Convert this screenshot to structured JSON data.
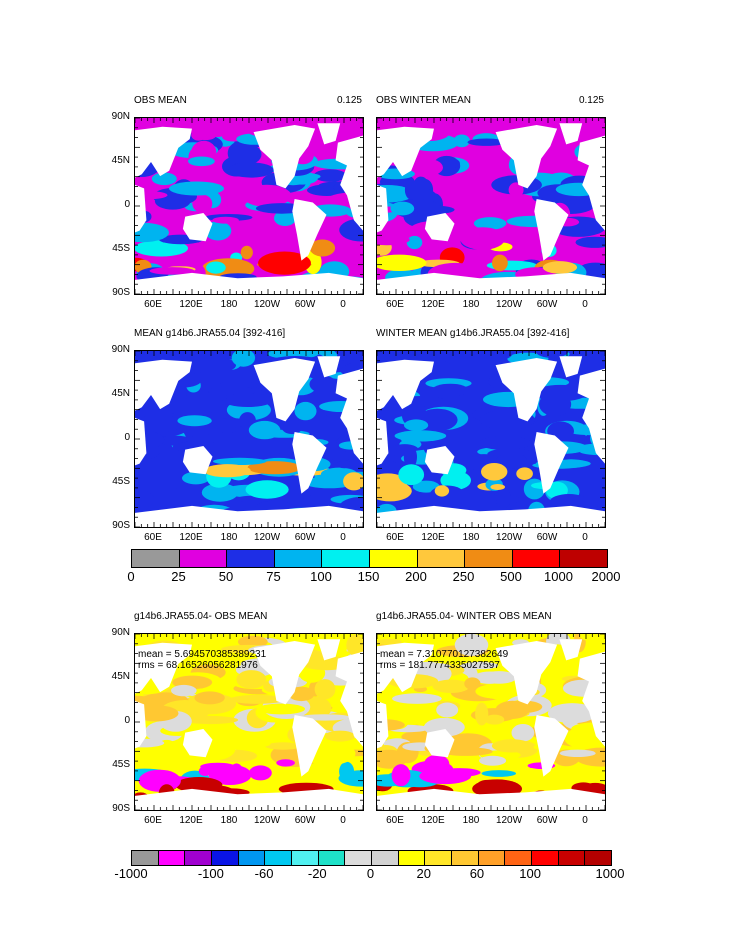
{
  "panels": [
    {
      "id": "p1",
      "title": "OBS MEAN",
      "right": "0.125",
      "stats": []
    },
    {
      "id": "p2",
      "title": "OBS WINTER MEAN",
      "right": "0.125",
      "stats": []
    },
    {
      "id": "p3",
      "title": "MEAN g14b6.JRA55.04 [392-416]",
      "right": "",
      "stats": []
    },
    {
      "id": "p4",
      "title": "WINTER MEAN g14b6.JRA55.04 [392-416]",
      "right": "",
      "stats": []
    },
    {
      "id": "p5",
      "title": "g14b6.JRA55.04- OBS MEAN",
      "right": "",
      "stats": [
        "mean = 5.694570385389231",
        "rms = 68.16526056281976"
      ]
    },
    {
      "id": "p6",
      "title": "g14b6.JRA55.04- WINTER OBS MEAN",
      "right": "",
      "stats": [
        "mean = 7.310770127382649",
        "rms = 181.7774335027597"
      ]
    }
  ],
  "lat_labels": [
    "90N",
    "45N",
    "0",
    "45S",
    "90S"
  ],
  "lon_labels": [
    "60E",
    "120E",
    "180",
    "120W",
    "60W",
    "0"
  ],
  "colorbar1": {
    "colors": [
      "#999999",
      "#e000e0",
      "#1e2ee6",
      "#00b4f0",
      "#00f0f0",
      "#ffff00",
      "#ffc83c",
      "#f08c14",
      "#ff0000",
      "#be0000"
    ],
    "labels": [
      "0",
      "25",
      "50",
      "75",
      "100",
      "150",
      "200",
      "250",
      "500",
      "1000",
      "2000"
    ]
  },
  "colorbar2": {
    "colors": [
      "#999999",
      "#ff00ff",
      "#a000d0",
      "#0a14e6",
      "#0096f0",
      "#00c8f0",
      "#50f0f0",
      "#1ee1c8",
      "#dcdcdc",
      "#d2d2d2",
      "#ffff00",
      "#ffe628",
      "#ffc832",
      "#ffa028",
      "#ff6414",
      "#ff0000",
      "#c80000",
      "#b40000"
    ],
    "labels": [
      "-1000",
      "-100",
      "-60",
      "-20",
      "0",
      "20",
      "60",
      "100",
      "1000"
    ]
  },
  "colors": {
    "land": "#ffffff",
    "ice": "#999999"
  }
}
